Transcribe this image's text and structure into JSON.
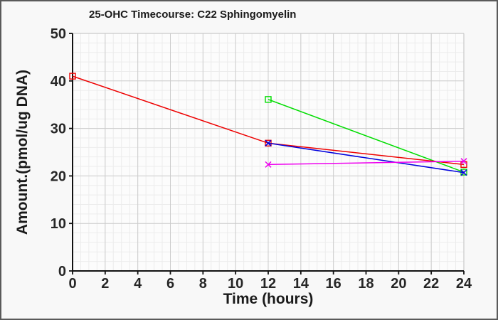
{
  "window": {
    "background": "#f8f8f8",
    "border_color": "#5a5a5a"
  },
  "chart_data": {
    "type": "line",
    "title": "25-OHC Timecourse: C22 Sphingomyelin",
    "xlabel": "Time (hours)",
    "ylabel": "Amount.(pmol/ug DNA)",
    "xlim": [
      0,
      24
    ],
    "ylim": [
      0,
      50
    ],
    "xticks": [
      0,
      2,
      4,
      6,
      8,
      10,
      12,
      14,
      16,
      18,
      20,
      22,
      24
    ],
    "yticks": [
      0,
      10,
      20,
      30,
      40,
      50
    ],
    "x_minor_step": 0.5,
    "y_minor_step": 2,
    "grid": "major+minor",
    "legend": "none",
    "series": [
      {
        "name": "green-series",
        "color": "#00dd00",
        "marker": "square",
        "x": [
          12,
          24
        ],
        "y": [
          36.1,
          20.8
        ]
      },
      {
        "name": "red-series",
        "color": "#ee0000",
        "marker": "square",
        "x": [
          0,
          12,
          24
        ],
        "y": [
          41.0,
          26.9,
          22.4
        ]
      },
      {
        "name": "blue-series",
        "color": "#0000dd",
        "marker": "x",
        "x": [
          12,
          24
        ],
        "y": [
          26.9,
          20.7
        ]
      },
      {
        "name": "magenta-series",
        "color": "#ee00ee",
        "marker": "x",
        "x": [
          12,
          24
        ],
        "y": [
          22.4,
          23.1
        ]
      }
    ],
    "style": {
      "axis_color": "#111111",
      "major_grid_color": "#cccccc",
      "minor_grid_color": "#ececec",
      "frame_color": "#c9c9c9",
      "plot_bg": "#fcfcfc",
      "tick_label_color": "#262626",
      "title_color": "#1a1a1a"
    }
  }
}
